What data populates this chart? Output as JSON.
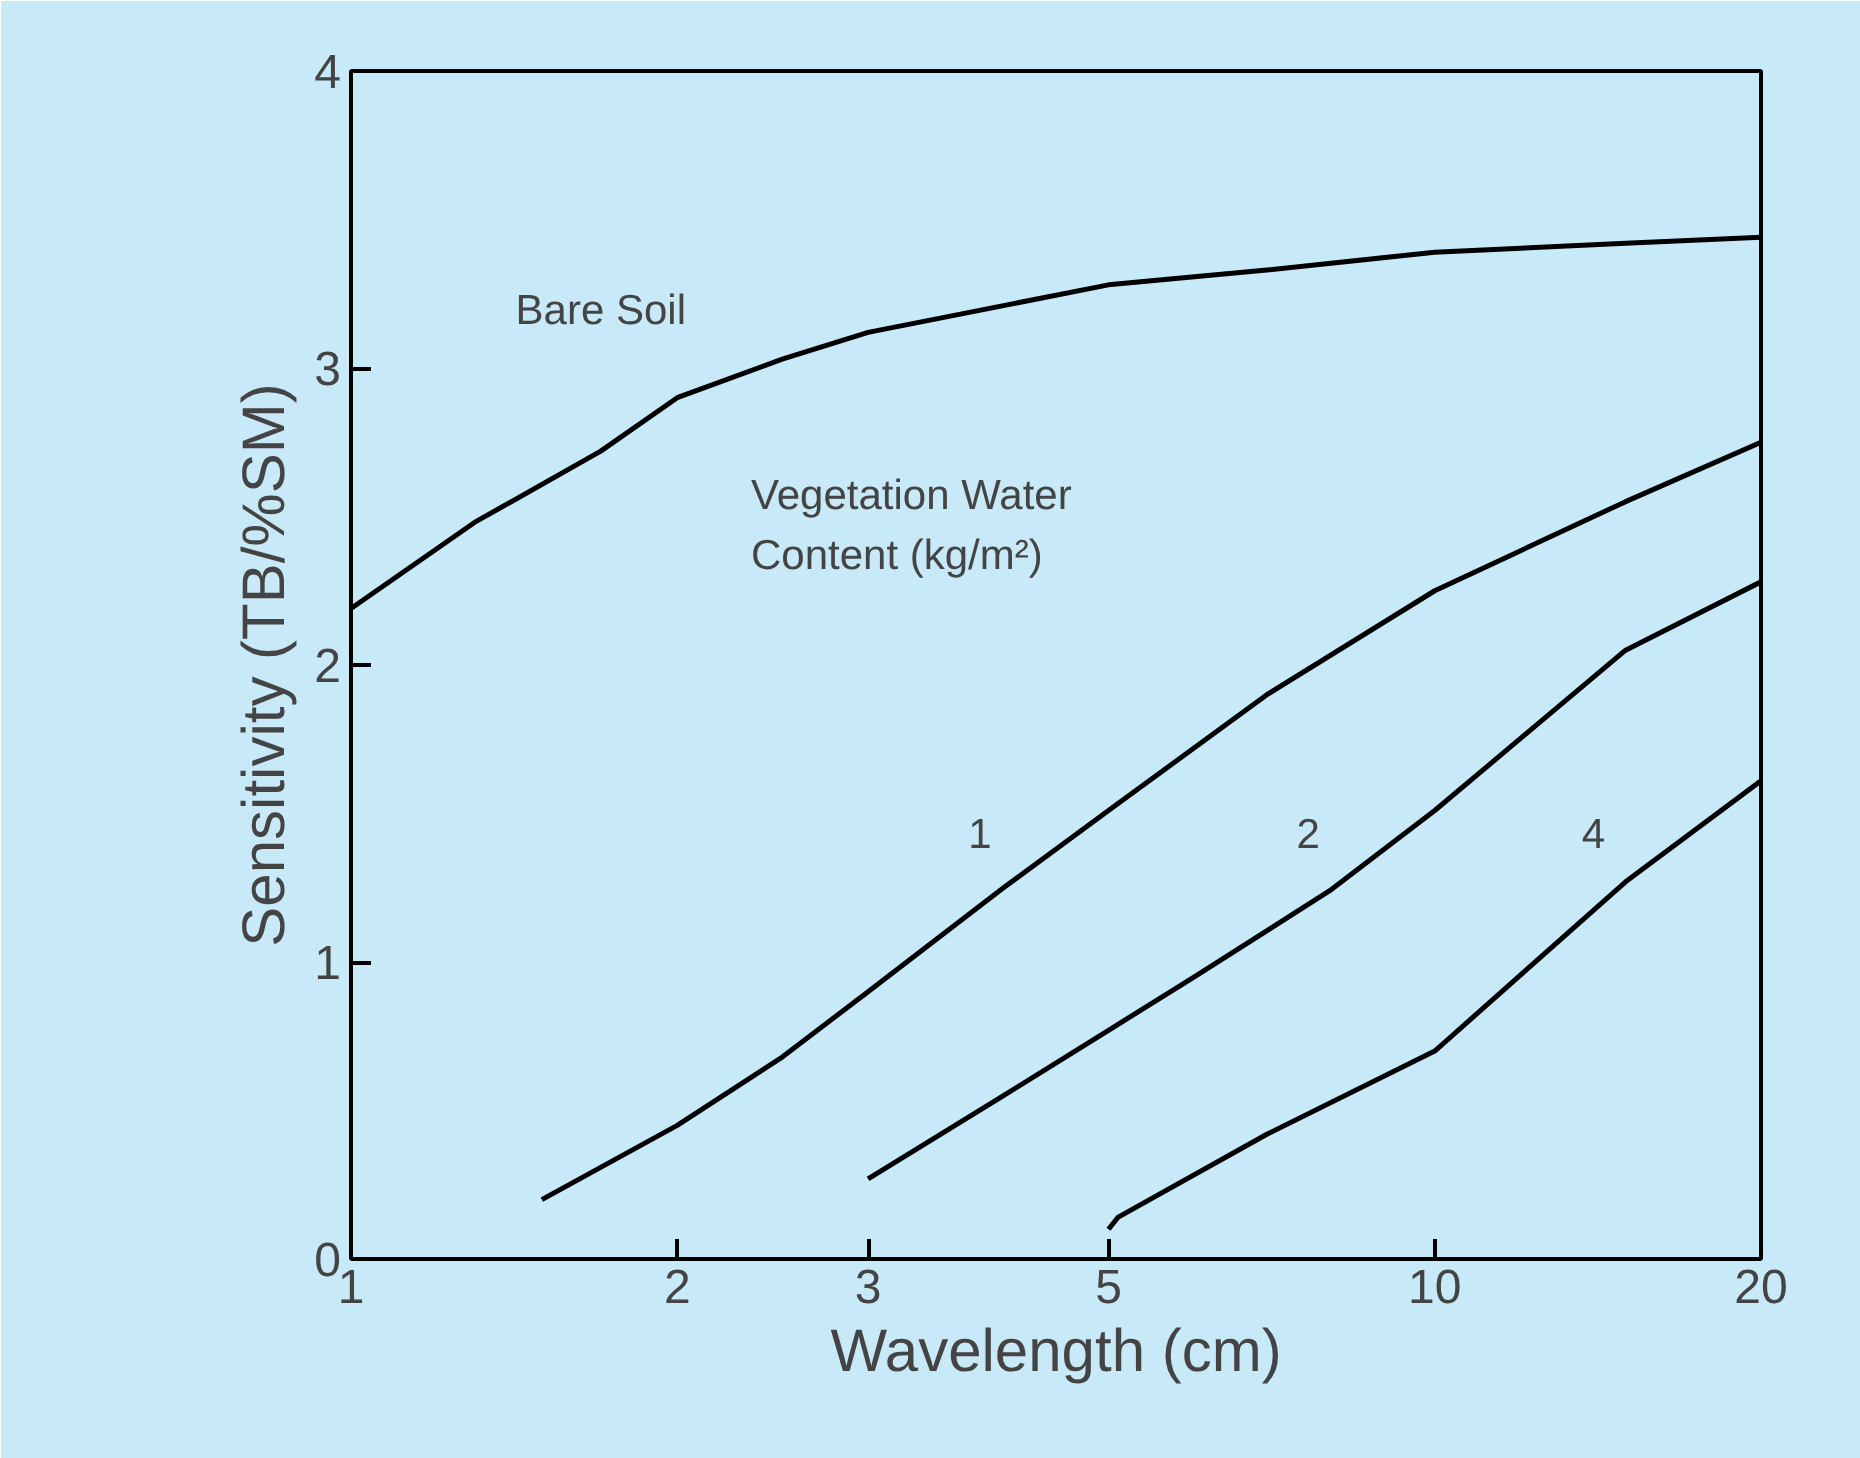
{
  "chart_data": {
    "type": "line",
    "xlabel": "Wavelength (cm)",
    "ylabel": "Sensitivity (TB/%SM)",
    "log": "x",
    "xlim": [
      1,
      20
    ],
    "xticks": [
      1,
      2,
      3,
      5,
      10,
      20
    ],
    "ylim": [
      0,
      4
    ],
    "yticks": [
      0,
      1,
      2,
      3,
      4
    ],
    "grid": false,
    "legend": false,
    "marker": "none",
    "line_style": "solid",
    "series": [
      {
        "name": "Bare Soil",
        "color": "#000000",
        "x": [
          1,
          1.3,
          1.7,
          2,
          2.5,
          3,
          4,
          5,
          7,
          10,
          15,
          20
        ],
        "values": [
          2.19,
          2.48,
          2.72,
          2.9,
          3.03,
          3.12,
          3.21,
          3.28,
          3.33,
          3.39,
          3.42,
          3.44
        ]
      },
      {
        "name": "1",
        "color": "#000000",
        "x": [
          1.5,
          2,
          2.5,
          3,
          4,
          5,
          7,
          10,
          15,
          20
        ],
        "values": [
          0.2,
          0.45,
          0.68,
          0.9,
          1.25,
          1.51,
          1.9,
          2.25,
          2.55,
          2.75
        ]
      },
      {
        "name": "2",
        "color": "#000000",
        "x": [
          3,
          4,
          5,
          6,
          8,
          10,
          15,
          20
        ],
        "values": [
          0.27,
          0.55,
          0.77,
          0.95,
          1.24,
          1.51,
          2.05,
          2.28
        ]
      },
      {
        "name": "4",
        "color": "#000000",
        "x": [
          5,
          5.1,
          7,
          10,
          15,
          20
        ],
        "values": [
          0.1,
          0.14,
          0.42,
          0.7,
          1.27,
          1.61
        ]
      }
    ],
    "annotations": [
      "Vegetation Water\nContent (kg/m²)"
    ]
  }
}
